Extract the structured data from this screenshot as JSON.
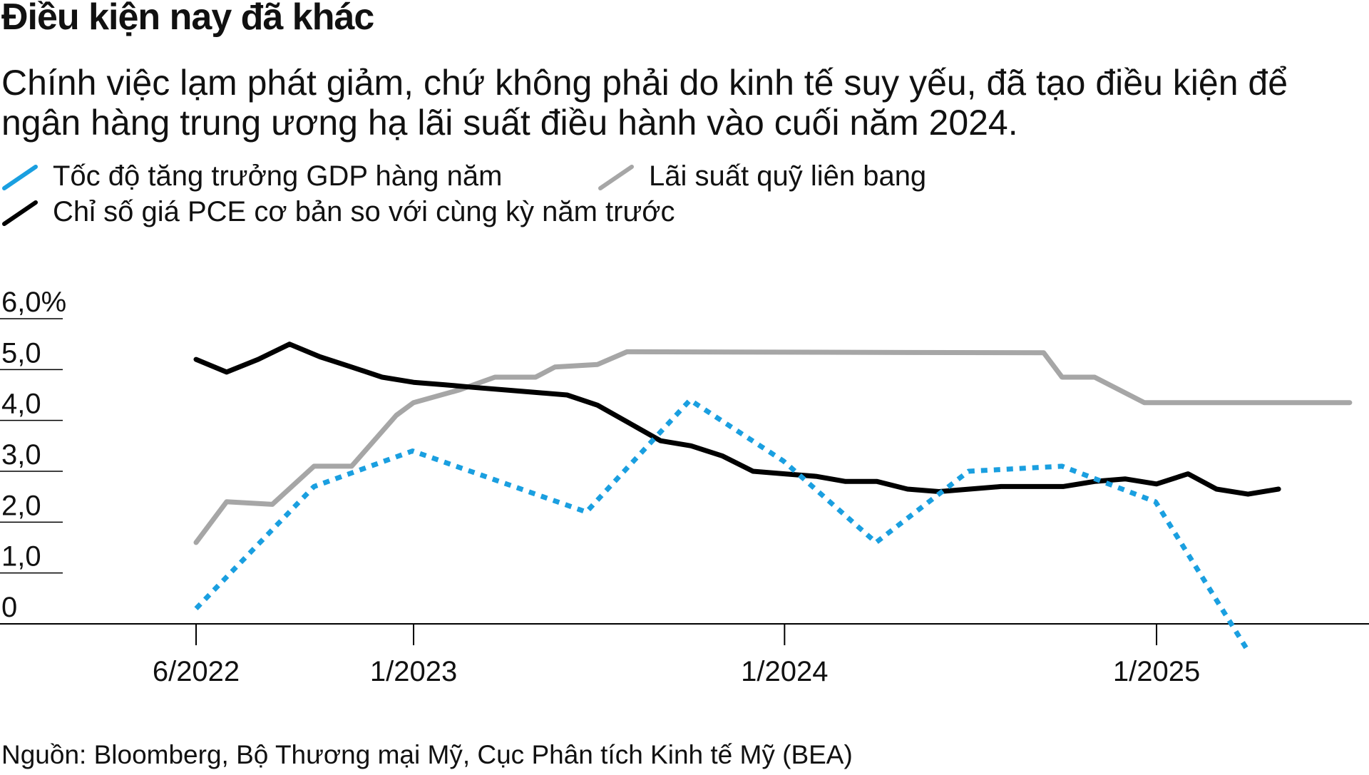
{
  "header": {
    "title": "Điều kiện nay đã khác",
    "subtitle": "Chính việc lạm phát giảm, chứ không phải do kinh tế suy yếu, đã tạo điều kiện để ngân hàng trung ương hạ lãi suất điều hành vào cuối năm 2024."
  },
  "legend": [
    {
      "label": "Tốc độ tăng trưởng GDP hàng năm",
      "color": "#1a9fe0",
      "style": "dotted"
    },
    {
      "label": "Lãi suất quỹ liên bang",
      "color": "#a6a6a6",
      "style": "solid"
    },
    {
      "label": "Chỉ số giá PCE cơ bản so với cùng kỳ năm trước",
      "color": "#000000",
      "style": "solid"
    }
  ],
  "footer": {
    "source": "Nguồn: Bloomberg, Bộ Thương mại Mỹ, Cục Phân tích Kinh tế Mỹ (BEA)"
  },
  "chart_data": {
    "type": "line",
    "title": "Điều kiện nay đã khác",
    "xlabel": "",
    "ylabel": "",
    "ylim": [
      -0.5,
      6.0
    ],
    "y_ticks": [
      {
        "value": 6,
        "label": "6,0%"
      },
      {
        "value": 5,
        "label": "5,0"
      },
      {
        "value": 4,
        "label": "4,0"
      },
      {
        "value": 3,
        "label": "3,0"
      },
      {
        "value": 2,
        "label": "2,0"
      },
      {
        "value": 1,
        "label": "1,0"
      },
      {
        "value": 0,
        "label": "0"
      }
    ],
    "x_range": [
      "2022-06-01",
      "2025-07-15"
    ],
    "x_ticks": [
      {
        "date": "2022-06-01",
        "label": "6/2022"
      },
      {
        "date": "2023-01-01",
        "label": "1/2023"
      },
      {
        "date": "2024-01-01",
        "label": "1/2024"
      },
      {
        "date": "2025-01-01",
        "label": "1/2025"
      }
    ],
    "grid": false,
    "series": [
      {
        "name": "Lãi suất quỹ liên bang",
        "color": "#a6a6a6",
        "dash": "solid",
        "points": [
          [
            "2022-06-01",
            1.6
          ],
          [
            "2022-07-01",
            2.4
          ],
          [
            "2022-08-15",
            2.35
          ],
          [
            "2022-09-25",
            3.1
          ],
          [
            "2022-11-01",
            3.1
          ],
          [
            "2022-12-15",
            4.1
          ],
          [
            "2023-01-01",
            4.35
          ],
          [
            "2023-02-15",
            4.6
          ],
          [
            "2023-03-22",
            4.85
          ],
          [
            "2023-05-01",
            4.85
          ],
          [
            "2023-05-20",
            5.05
          ],
          [
            "2023-07-01",
            5.1
          ],
          [
            "2023-07-30",
            5.35
          ],
          [
            "2024-09-12",
            5.33
          ],
          [
            "2024-09-30",
            4.85
          ],
          [
            "2024-11-01",
            4.85
          ],
          [
            "2024-12-20",
            4.35
          ],
          [
            "2025-07-10",
            4.35
          ]
        ]
      },
      {
        "name": "Chỉ số giá PCE cơ bản so với cùng kỳ năm trước",
        "color": "#000000",
        "dash": "solid",
        "points": [
          [
            "2022-06-01",
            5.2
          ],
          [
            "2022-07-01",
            4.95
          ],
          [
            "2022-08-01",
            5.2
          ],
          [
            "2022-09-01",
            5.5
          ],
          [
            "2022-10-01",
            5.25
          ],
          [
            "2022-11-01",
            5.05
          ],
          [
            "2022-12-01",
            4.85
          ],
          [
            "2023-01-01",
            4.75
          ],
          [
            "2023-02-01",
            4.7
          ],
          [
            "2023-03-01",
            4.65
          ],
          [
            "2023-04-01",
            4.6
          ],
          [
            "2023-05-01",
            4.55
          ],
          [
            "2023-06-01",
            4.5
          ],
          [
            "2023-07-01",
            4.3
          ],
          [
            "2023-08-01",
            3.95
          ],
          [
            "2023-09-01",
            3.6
          ],
          [
            "2023-10-01",
            3.5
          ],
          [
            "2023-11-01",
            3.3
          ],
          [
            "2023-12-01",
            3.0
          ],
          [
            "2024-01-01",
            2.95
          ],
          [
            "2024-02-01",
            2.9
          ],
          [
            "2024-03-01",
            2.8
          ],
          [
            "2024-04-01",
            2.8
          ],
          [
            "2024-05-01",
            2.65
          ],
          [
            "2024-06-01",
            2.6
          ],
          [
            "2024-07-01",
            2.65
          ],
          [
            "2024-08-01",
            2.7
          ],
          [
            "2024-09-01",
            2.7
          ],
          [
            "2024-10-01",
            2.7
          ],
          [
            "2024-11-01",
            2.8
          ],
          [
            "2024-12-01",
            2.85
          ],
          [
            "2025-01-01",
            2.75
          ],
          [
            "2025-02-01",
            2.95
          ],
          [
            "2025-03-01",
            2.65
          ],
          [
            "2025-04-01",
            2.55
          ],
          [
            "2025-05-01",
            2.65
          ]
        ]
      },
      {
        "name": "Tốc độ tăng trưởng GDP hàng năm",
        "color": "#1a9fe0",
        "dash": "dotted",
        "points": [
          [
            "2022-06-01",
            0.3
          ],
          [
            "2022-09-25",
            2.7
          ],
          [
            "2022-12-31",
            3.4
          ],
          [
            "2023-06-20",
            2.2
          ],
          [
            "2023-09-30",
            4.4
          ],
          [
            "2023-12-31",
            3.2
          ],
          [
            "2024-03-31",
            1.6
          ],
          [
            "2024-06-30",
            3.0
          ],
          [
            "2024-09-30",
            3.1
          ],
          [
            "2024-12-31",
            2.4
          ],
          [
            "2025-03-31",
            -0.5
          ]
        ]
      }
    ]
  }
}
